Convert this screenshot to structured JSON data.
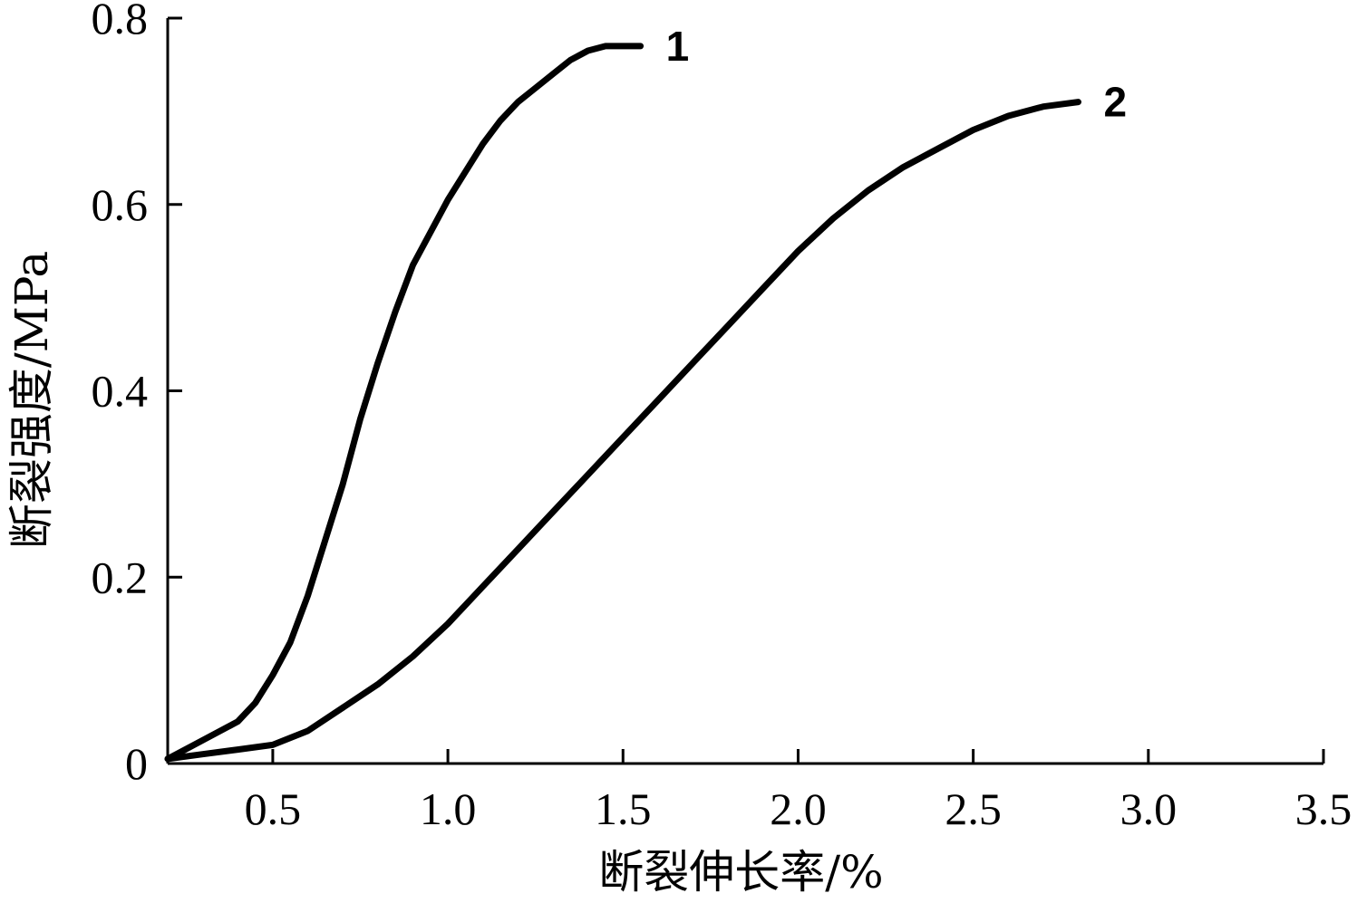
{
  "chart_data": {
    "type": "line",
    "title": "",
    "xlabel": "断裂伸长率/%",
    "ylabel": "断裂强度/MPa",
    "xlim": [
      0.2,
      3.5
    ],
    "ylim": [
      0,
      0.8
    ],
    "xticks": [
      {
        "value": 0.5,
        "label": "0.5"
      },
      {
        "value": 1.0,
        "label": "1.0"
      },
      {
        "value": 1.5,
        "label": "1.5"
      },
      {
        "value": 2.0,
        "label": "2.0"
      },
      {
        "value": 2.5,
        "label": "2.5"
      },
      {
        "value": 3.0,
        "label": "3.0"
      },
      {
        "value": 3.5,
        "label": "3.5"
      }
    ],
    "yticks": [
      {
        "value": 0,
        "label": "0"
      },
      {
        "value": 0.2,
        "label": "0.2"
      },
      {
        "value": 0.4,
        "label": "0.4"
      },
      {
        "value": 0.6,
        "label": "0.6"
      },
      {
        "value": 0.8,
        "label": "0.8"
      }
    ],
    "grid": false,
    "legend": "none",
    "series": [
      {
        "name": "1",
        "color": "#000000",
        "x": [
          0.2,
          0.3,
          0.4,
          0.45,
          0.5,
          0.55,
          0.6,
          0.65,
          0.7,
          0.75,
          0.8,
          0.85,
          0.9,
          0.95,
          1.0,
          1.05,
          1.1,
          1.15,
          1.2,
          1.25,
          1.3,
          1.35,
          1.4,
          1.45,
          1.5,
          1.55
        ],
        "y": [
          0.005,
          0.025,
          0.045,
          0.065,
          0.095,
          0.13,
          0.18,
          0.24,
          0.3,
          0.37,
          0.43,
          0.485,
          0.535,
          0.57,
          0.605,
          0.635,
          0.665,
          0.69,
          0.71,
          0.725,
          0.74,
          0.755,
          0.765,
          0.77,
          0.77,
          0.77
        ]
      },
      {
        "name": "2",
        "color": "#000000",
        "x": [
          0.2,
          0.3,
          0.4,
          0.5,
          0.6,
          0.7,
          0.8,
          0.9,
          1.0,
          1.1,
          1.2,
          1.3,
          1.4,
          1.5,
          1.6,
          1.7,
          1.8,
          1.9,
          2.0,
          2.1,
          2.2,
          2.3,
          2.4,
          2.5,
          2.6,
          2.7,
          2.8
        ],
        "y": [
          0.005,
          0.01,
          0.015,
          0.02,
          0.035,
          0.06,
          0.085,
          0.115,
          0.15,
          0.19,
          0.23,
          0.27,
          0.31,
          0.35,
          0.39,
          0.43,
          0.47,
          0.51,
          0.55,
          0.585,
          0.615,
          0.64,
          0.66,
          0.68,
          0.695,
          0.705,
          0.71
        ]
      }
    ]
  }
}
